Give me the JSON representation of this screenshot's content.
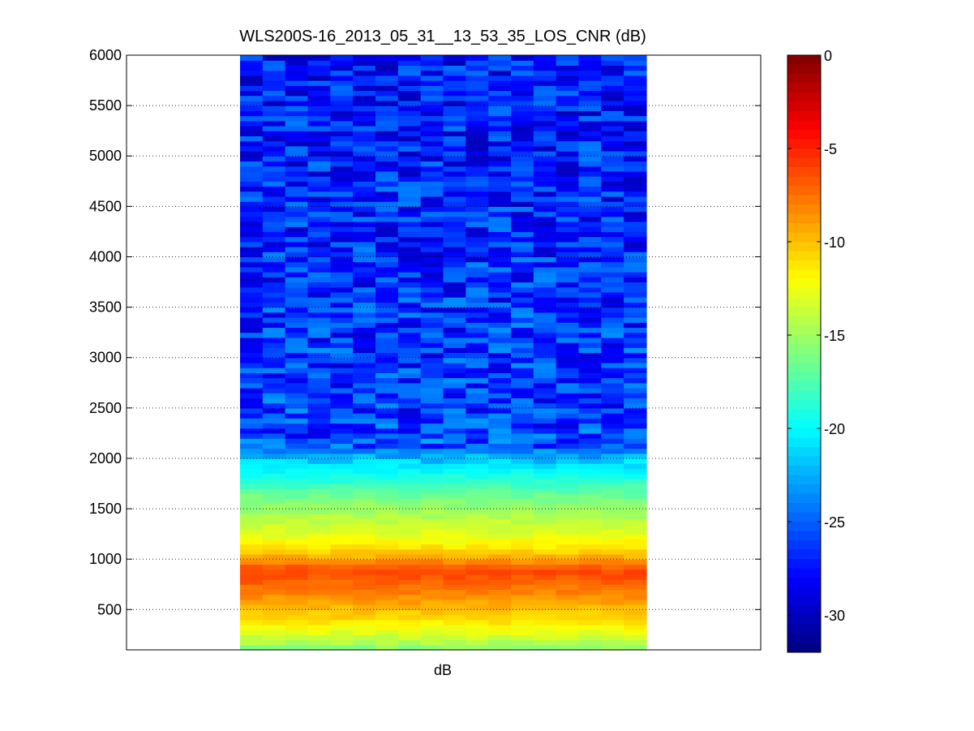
{
  "chart_data": {
    "type": "heatmap",
    "title": "WLS200S-16_2013_05_31__13_53_35_LOS_CNR (dB)",
    "xlabel": "dB",
    "ylabel": "",
    "ylim": [
      100,
      6000
    ],
    "y_ticks": [
      "500",
      "1000",
      "1500",
      "2000",
      "2500",
      "3000",
      "3500",
      "4000",
      "4500",
      "5000",
      "5500",
      "6000"
    ],
    "grid": "horizontal dotted",
    "columns": 18,
    "colormap": "jet",
    "colorbar": {
      "clim": [
        -32,
        0
      ],
      "ticks": [
        "0",
        "-5",
        "-10",
        "-15",
        "-20",
        "-25",
        "-30"
      ]
    },
    "cnr_profile": [
      {
        "range": 100,
        "cnr": -16.0
      },
      {
        "range": 200,
        "cnr": -14.0
      },
      {
        "range": 300,
        "cnr": -12.5
      },
      {
        "range": 400,
        "cnr": -11.0
      },
      {
        "range": 500,
        "cnr": -10.0
      },
      {
        "range": 600,
        "cnr": -8.8
      },
      {
        "range": 700,
        "cnr": -7.8
      },
      {
        "range": 800,
        "cnr": -6.8
      },
      {
        "range": 900,
        "cnr": -6.3
      },
      {
        "range": 1000,
        "cnr": -9.0
      },
      {
        "range": 1100,
        "cnr": -11.0
      },
      {
        "range": 1200,
        "cnr": -12.3
      },
      {
        "range": 1300,
        "cnr": -13.3
      },
      {
        "range": 1400,
        "cnr": -14.2
      },
      {
        "range": 1500,
        "cnr": -15.2
      },
      {
        "range": 1600,
        "cnr": -16.2
      },
      {
        "range": 1700,
        "cnr": -17.5
      },
      {
        "range": 1800,
        "cnr": -19.0
      },
      {
        "range": 1900,
        "cnr": -20.3
      },
      {
        "range": 2000,
        "cnr": -22.0
      },
      {
        "range": 2100,
        "cnr": -24.5
      },
      {
        "range": 2200,
        "cnr": -26.0
      },
      {
        "range": 6000,
        "cnr": -27.5
      }
    ]
  }
}
